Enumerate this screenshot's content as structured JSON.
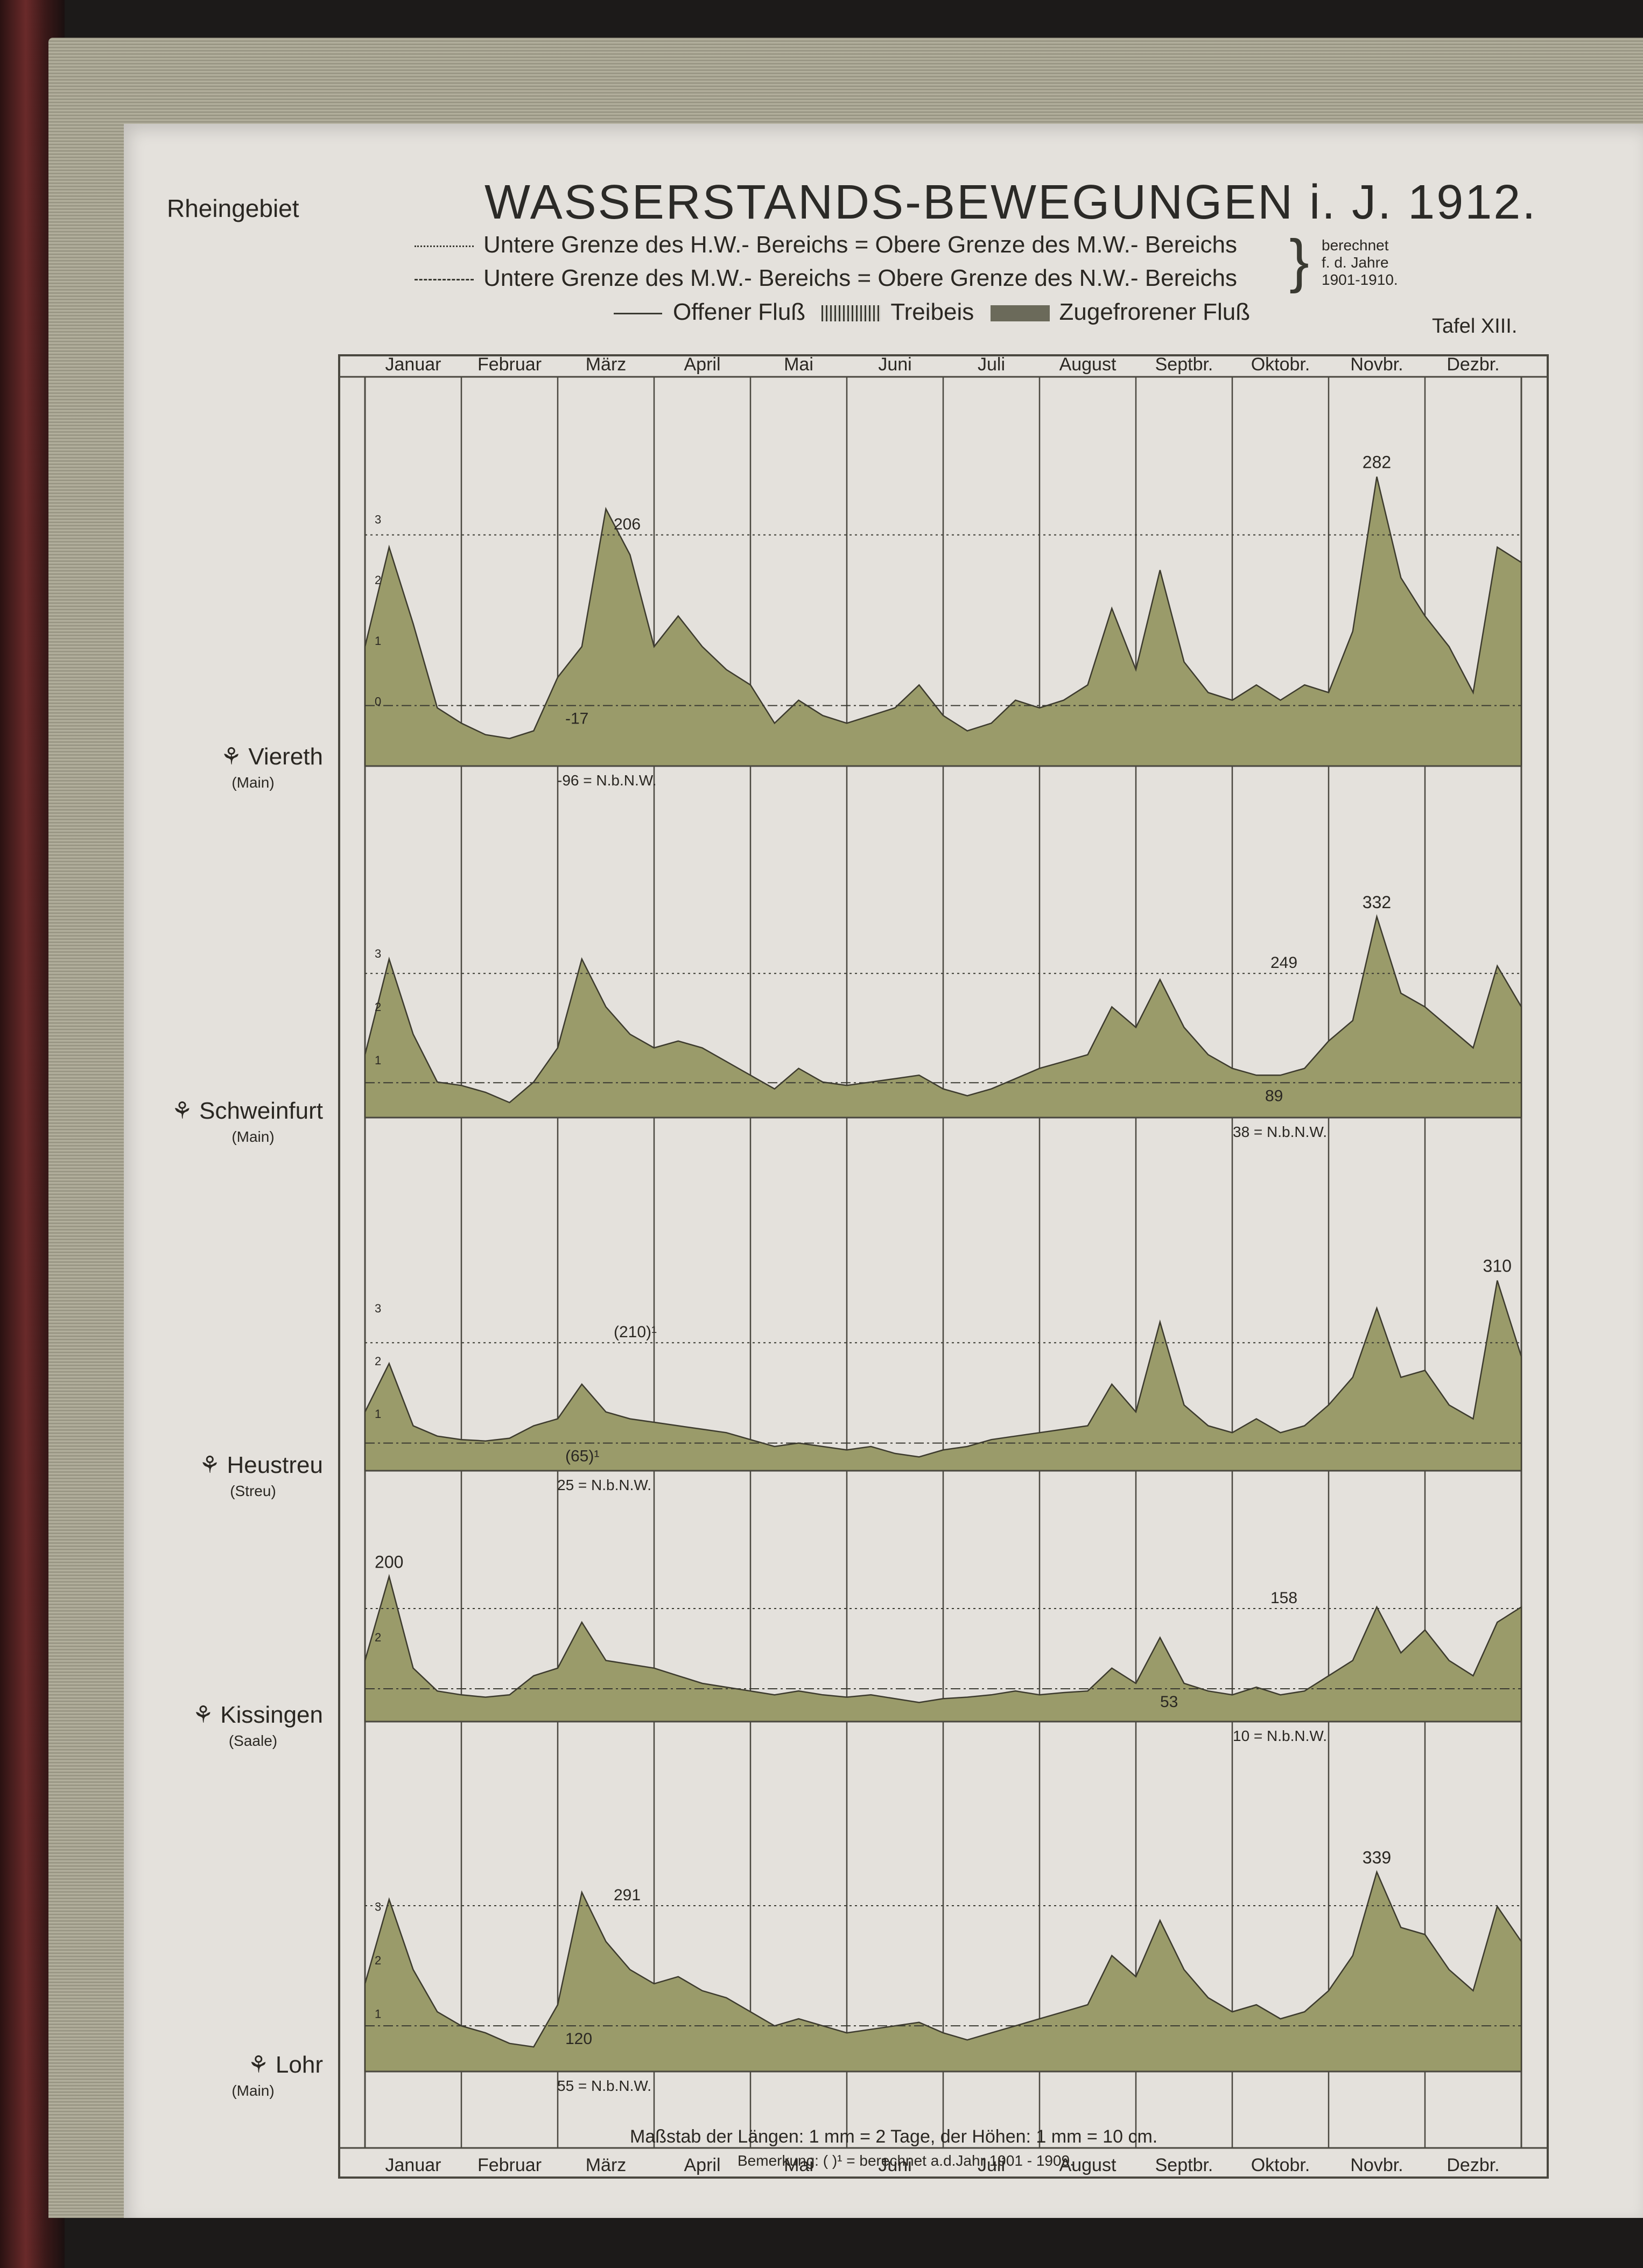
{
  "header": {
    "region": "Rheingebiet",
    "title": "WASSERSTANDS-BEWEGUNGEN i. J. 1912.",
    "plate": "Tafel XIII."
  },
  "legend": {
    "line1": "Untere Grenze des H.W.- Bereichs = Obere Grenze des M.W.- Bereichs",
    "line2": "Untere Grenze des M.W.- Bereichs = Obere Grenze des N.W.- Bereichs",
    "note1": "berechnet",
    "note2": "f. d. Jahre",
    "note3": "1901-1910.",
    "open": "Offener Fluß",
    "drift": "Treibeis",
    "frozen": "Zugefrorener Fluß"
  },
  "months": [
    "Januar",
    "Februar",
    "März",
    "April",
    "Mai",
    "Juni",
    "Juli",
    "August",
    "Septbr.",
    "Oktobr.",
    "Novbr.",
    "Dezbr."
  ],
  "footer": {
    "scale": "Maßstab der Längen: 1 mm = 2 Tage, der Höhen: 1 mm = 10 cm.",
    "remark": "Bemerkung: ( )¹ = berechnet a.d.Jahr 1901 - 1909."
  },
  "colors": {
    "fill": "#9a9b6a",
    "stroke": "#3d3b2e",
    "grid": "#4a4840",
    "background": "#e4e1dc"
  },
  "chart_data": [
    {
      "type": "area",
      "station": "Viereth",
      "river": "(Main)",
      "ylabel_ticks": [
        "0",
        "1",
        "2",
        "3"
      ],
      "ylim": [
        -96,
        300
      ],
      "labels": {
        "hw": "206",
        "mw": "-17",
        "nw": "-96 = N.b.N.W.",
        "peak": "282"
      },
      "hw_limit": 206,
      "mw_limit": -17,
      "nw_base": -96,
      "max": 282,
      "x": [
        "Jan 1",
        "Jan 8",
        "Jan 15",
        "Jan 22",
        "Feb 1",
        "Feb 8",
        "Feb 15",
        "Feb 22",
        "Mar 1",
        "Mar 8",
        "Mar 15",
        "Mar 22",
        "Apr 1",
        "Apr 8",
        "Apr 15",
        "Apr 22",
        "May 1",
        "May 8",
        "May 15",
        "May 22",
        "Jun 1",
        "Jun 8",
        "Jun 15",
        "Jun 22",
        "Jul 1",
        "Jul 8",
        "Jul 15",
        "Jul 22",
        "Aug 1",
        "Aug 8",
        "Aug 15",
        "Aug 22",
        "Sep 1",
        "Sep 8",
        "Sep 15",
        "Sep 22",
        "Oct 1",
        "Oct 8",
        "Oct 15",
        "Oct 22",
        "Nov 1",
        "Nov 8",
        "Nov 15",
        "Nov 22",
        "Dec 1",
        "Dec 8",
        "Dec 15",
        "Dec 22",
        "Dec 31"
      ],
      "values": [
        60,
        190,
        90,
        -20,
        -40,
        -55,
        -60,
        -50,
        20,
        60,
        240,
        180,
        60,
        100,
        60,
        30,
        10,
        -40,
        -10,
        -30,
        -40,
        -30,
        -20,
        10,
        -30,
        -50,
        -40,
        -10,
        -20,
        -10,
        10,
        110,
        30,
        160,
        40,
        0,
        -10,
        10,
        -10,
        10,
        0,
        80,
        282,
        150,
        100,
        60,
        0,
        190,
        170
      ]
    },
    {
      "type": "area",
      "station": "Schweinfurt",
      "river": "(Main)",
      "ylabel_ticks": [
        "1",
        "2",
        "3"
      ],
      "ylim": [
        38,
        350
      ],
      "labels": {
        "hw": "249",
        "mw": "89",
        "nw": "38 = N.b.N.W.",
        "peak": "332"
      },
      "hw_limit": 249,
      "mw_limit": 89,
      "nw_base": 38,
      "max": 332,
      "x": [
        "Jan 1",
        "Jan 8",
        "Jan 15",
        "Jan 22",
        "Feb 1",
        "Feb 8",
        "Feb 15",
        "Feb 22",
        "Mar 1",
        "Mar 8",
        "Mar 15",
        "Mar 22",
        "Apr 1",
        "Apr 8",
        "Apr 15",
        "Apr 22",
        "May 1",
        "May 8",
        "May 15",
        "May 22",
        "Jun 1",
        "Jun 8",
        "Jun 15",
        "Jun 22",
        "Jul 1",
        "Jul 8",
        "Jul 15",
        "Jul 22",
        "Aug 1",
        "Aug 8",
        "Aug 15",
        "Aug 22",
        "Sep 1",
        "Sep 8",
        "Sep 15",
        "Sep 22",
        "Oct 1",
        "Oct 8",
        "Oct 15",
        "Oct 22",
        "Nov 1",
        "Nov 8",
        "Nov 15",
        "Nov 22",
        "Dec 1",
        "Dec 8",
        "Dec 15",
        "Dec 22",
        "Dec 31"
      ],
      "values": [
        130,
        270,
        160,
        90,
        85,
        75,
        60,
        90,
        140,
        270,
        200,
        160,
        140,
        150,
        140,
        120,
        100,
        80,
        110,
        90,
        85,
        90,
        95,
        100,
        80,
        70,
        80,
        95,
        110,
        120,
        130,
        200,
        170,
        240,
        170,
        130,
        110,
        100,
        100,
        110,
        150,
        180,
        332,
        220,
        200,
        170,
        140,
        260,
        200
      ]
    },
    {
      "type": "area",
      "station": "Heustreu",
      "river": "(Streu)",
      "ylabel_ticks": [
        "1",
        "2",
        "3"
      ],
      "ylim": [
        25,
        330
      ],
      "labels": {
        "hw": "(210)¹",
        "mw": "(65)¹",
        "nw": "25 = N.b.N.W.",
        "peak": "310"
      },
      "hw_limit": 210,
      "mw_limit": 65,
      "nw_base": 25,
      "max": 310,
      "x": [
        "Jan 1",
        "Jan 8",
        "Jan 15",
        "Jan 22",
        "Feb 1",
        "Feb 8",
        "Feb 15",
        "Feb 22",
        "Mar 1",
        "Mar 8",
        "Mar 15",
        "Mar 22",
        "Apr 1",
        "Apr 8",
        "Apr 15",
        "Apr 22",
        "May 1",
        "May 8",
        "May 15",
        "May 22",
        "Jun 1",
        "Jun 8",
        "Jun 15",
        "Jun 22",
        "Jul 1",
        "Jul 8",
        "Jul 15",
        "Jul 22",
        "Aug 1",
        "Aug 8",
        "Aug 15",
        "Aug 22",
        "Sep 1",
        "Sep 8",
        "Sep 15",
        "Sep 22",
        "Oct 1",
        "Oct 8",
        "Oct 15",
        "Oct 22",
        "Nov 1",
        "Nov 8",
        "Nov 15",
        "Nov 22",
        "Dec 1",
        "Dec 8",
        "Dec 15",
        "Dec 22",
        "Dec 31"
      ],
      "values": [
        110,
        180,
        90,
        75,
        70,
        68,
        72,
        90,
        100,
        150,
        110,
        100,
        95,
        90,
        85,
        80,
        70,
        60,
        65,
        60,
        55,
        60,
        50,
        45,
        55,
        60,
        70,
        75,
        80,
        85,
        90,
        150,
        110,
        240,
        120,
        90,
        80,
        100,
        80,
        90,
        120,
        160,
        260,
        160,
        170,
        120,
        100,
        300,
        190
      ]
    },
    {
      "type": "area",
      "station": "Kissingen",
      "river": "(Saale)",
      "ylabel_ticks": [
        "2"
      ],
      "ylim": [
        10,
        220
      ],
      "labels": {
        "hw": "158",
        "mw": "53",
        "nw": "10 = N.b.N.W.",
        "peak": "200"
      },
      "hw_limit": 158,
      "mw_limit": 53,
      "nw_base": 10,
      "max": 200,
      "x": [
        "Jan 1",
        "Jan 8",
        "Jan 15",
        "Jan 22",
        "Feb 1",
        "Feb 8",
        "Feb 15",
        "Feb 22",
        "Mar 1",
        "Mar 8",
        "Mar 15",
        "Mar 22",
        "Apr 1",
        "Apr 8",
        "Apr 15",
        "Apr 22",
        "May 1",
        "May 8",
        "May 15",
        "May 22",
        "Jun 1",
        "Jun 8",
        "Jun 15",
        "Jun 22",
        "Jul 1",
        "Jul 8",
        "Jul 15",
        "Jul 22",
        "Aug 1",
        "Aug 8",
        "Aug 15",
        "Aug 22",
        "Sep 1",
        "Sep 8",
        "Sep 15",
        "Sep 22",
        "Oct 1",
        "Oct 8",
        "Oct 15",
        "Oct 22",
        "Nov 1",
        "Nov 8",
        "Nov 15",
        "Nov 22",
        "Dec 1",
        "Dec 8",
        "Dec 15",
        "Dec 22",
        "Dec 31"
      ],
      "values": [
        90,
        200,
        80,
        50,
        45,
        42,
        45,
        70,
        80,
        140,
        90,
        85,
        80,
        70,
        60,
        55,
        50,
        45,
        50,
        45,
        42,
        45,
        40,
        35,
        40,
        42,
        45,
        50,
        45,
        48,
        50,
        80,
        60,
        120,
        60,
        50,
        45,
        55,
        45,
        50,
        70,
        90,
        160,
        100,
        130,
        90,
        70,
        140,
        160
      ]
    },
    {
      "type": "area",
      "station": "Lohr",
      "river": "(Main)",
      "ylabel_ticks": [
        "1",
        "2",
        "3"
      ],
      "ylim": [
        55,
        360
      ],
      "labels": {
        "hw": "291",
        "mw": "120",
        "nw": "55 = N.b.N.W.",
        "peak": "339"
      },
      "hw_limit": 291,
      "mw_limit": 120,
      "nw_base": 55,
      "max": 339,
      "x": [
        "Jan 1",
        "Jan 8",
        "Jan 15",
        "Jan 22",
        "Feb 1",
        "Feb 8",
        "Feb 15",
        "Feb 22",
        "Mar 1",
        "Mar 8",
        "Mar 15",
        "Mar 22",
        "Apr 1",
        "Apr 8",
        "Apr 15",
        "Apr 22",
        "May 1",
        "May 8",
        "May 15",
        "May 22",
        "Jun 1",
        "Jun 8",
        "Jun 15",
        "Jun 22",
        "Jul 1",
        "Jul 8",
        "Jul 15",
        "Jul 22",
        "Aug 1",
        "Aug 8",
        "Aug 15",
        "Aug 22",
        "Sep 1",
        "Sep 8",
        "Sep 15",
        "Sep 22",
        "Oct 1",
        "Oct 8",
        "Oct 15",
        "Oct 22",
        "Nov 1",
        "Nov 8",
        "Nov 15",
        "Nov 22",
        "Dec 1",
        "Dec 8",
        "Dec 15",
        "Dec 22",
        "Dec 31"
      ],
      "values": [
        180,
        300,
        200,
        140,
        120,
        110,
        95,
        90,
        150,
        310,
        240,
        200,
        180,
        190,
        170,
        160,
        140,
        120,
        130,
        120,
        110,
        115,
        120,
        125,
        110,
        100,
        110,
        120,
        130,
        140,
        150,
        220,
        190,
        270,
        200,
        160,
        140,
        150,
        130,
        140,
        170,
        220,
        339,
        260,
        250,
        200,
        170,
        290,
        240
      ]
    }
  ]
}
